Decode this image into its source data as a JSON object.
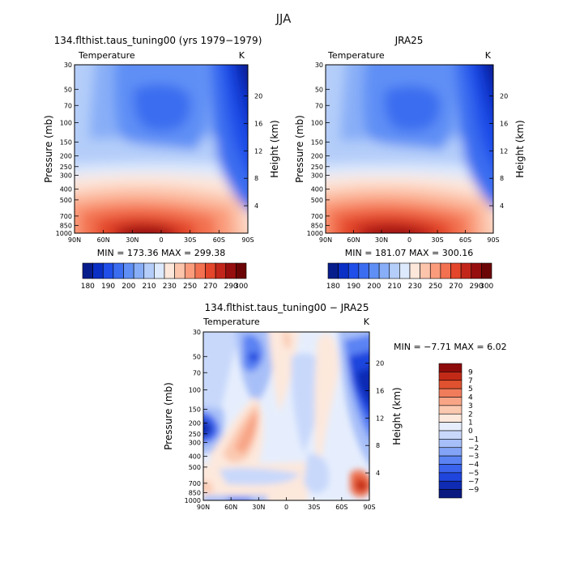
{
  "page": {
    "title": "JJA"
  },
  "chart_data": [
    {
      "type": "heatmap",
      "title": "134.flthist.taus_tuning00 (yrs 1979−1979)",
      "variable": "Temperature",
      "units": "K",
      "ylabel": "Pressure (mb)",
      "ylabel_right": "Height (km)",
      "x_ticks": [
        "90N",
        "60N",
        "30N",
        "0",
        "30S",
        "60S",
        "90S"
      ],
      "y_ticks": [
        "30",
        "50",
        "70",
        "100",
        "150",
        "200",
        "250",
        "300",
        "400",
        "500",
        "700",
        "850",
        "1000"
      ],
      "height_ticks": [
        "4",
        "8",
        "12",
        "16",
        "20"
      ],
      "stats": "MIN = 173.36   MAX = 299.38",
      "colorbar_labels": [
        "180",
        "190",
        "200",
        "210",
        "230",
        "250",
        "270",
        "290",
        "300"
      ]
    },
    {
      "type": "heatmap",
      "title": "JRA25",
      "variable": "Temperature",
      "units": "K",
      "ylabel": "Pressure (mb)",
      "ylabel_right": "Height (km)",
      "x_ticks": [
        "90N",
        "60N",
        "30N",
        "0",
        "30S",
        "60S",
        "90S"
      ],
      "y_ticks": [
        "30",
        "50",
        "70",
        "100",
        "150",
        "200",
        "250",
        "300",
        "400",
        "500",
        "700",
        "850",
        "1000"
      ],
      "height_ticks": [
        "4",
        "8",
        "12",
        "16",
        "20"
      ],
      "stats": "MIN = 181.07   MAX = 300.16",
      "colorbar_labels": [
        "180",
        "190",
        "200",
        "210",
        "230",
        "250",
        "270",
        "290",
        "300"
      ]
    },
    {
      "type": "heatmap",
      "title": "134.flthist.taus_tuning00 − JRA25",
      "variable": "Temperature",
      "units": "K",
      "ylabel": "Pressure (mb)",
      "ylabel_right": "Height (km)",
      "x_ticks": [
        "90N",
        "60N",
        "30N",
        "0",
        "30S",
        "60S",
        "90S"
      ],
      "y_ticks": [
        "30",
        "50",
        "70",
        "100",
        "150",
        "200",
        "250",
        "300",
        "400",
        "500",
        "700",
        "850",
        "1000"
      ],
      "height_ticks": [
        "4",
        "8",
        "12",
        "16",
        "20"
      ],
      "stats": "MIN =   −7.71   MAX =    6.02",
      "colorbar_labels": [
        "9",
        "7",
        "5",
        "4",
        "3",
        "2",
        "1",
        "0",
        "−1",
        "−2",
        "−3",
        "−4",
        "−5",
        "−7",
        "−9"
      ]
    }
  ],
  "colors": {
    "temp_scale": [
      "#081d8c",
      "#0a2fc4",
      "#1f4ee8",
      "#3b6df0",
      "#5f8ff5",
      "#88aef7",
      "#b4cdf9",
      "#dde9fc",
      "#fde6da",
      "#fcc4ab",
      "#fa9c7c",
      "#f27150",
      "#e3462a",
      "#c2261a",
      "#960e0e",
      "#6b0505"
    ],
    "diff_scale": [
      "#0a1a80",
      "#0f2bb3",
      "#1f45dd",
      "#3a63ee",
      "#5b83f3",
      "#83a3f6",
      "#a7bff8",
      "#c8d8fb",
      "#e6eefd",
      "#fde8dc",
      "#fbc9b0",
      "#f8a587",
      "#f07c5c",
      "#e0522f",
      "#c22a17",
      "#8e0b0b"
    ]
  }
}
